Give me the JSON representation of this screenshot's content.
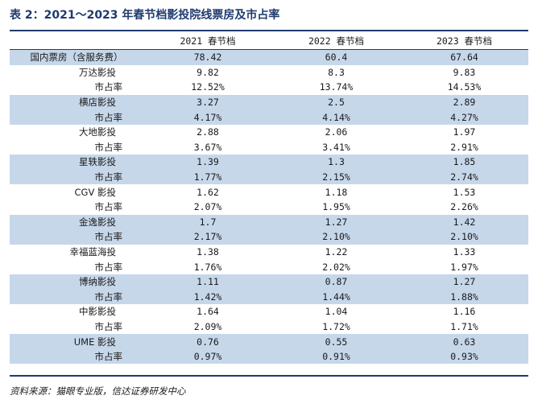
{
  "title": "表 2：2021～2023 年春节档影投院线票房及市占率",
  "columns": [
    "",
    "2021 春节档",
    "2022 春节档",
    "2023 春节档"
  ],
  "rows": [
    {
      "label": "国内票房（含服务费）",
      "values": [
        "78.42",
        "60.4",
        "67.64"
      ],
      "kind": "total",
      "shaded": true
    },
    {
      "label": "万达影投",
      "values": [
        "9.82",
        "8.3",
        "9.83"
      ],
      "kind": "company",
      "shaded": false
    },
    {
      "label": "市占率",
      "values": [
        "12.52%",
        "13.74%",
        "14.53%"
      ],
      "kind": "share",
      "shaded": false
    },
    {
      "label": "横店影投",
      "values": [
        "3.27",
        "2.5",
        "2.89"
      ],
      "kind": "company",
      "shaded": true
    },
    {
      "label": "市占率",
      "values": [
        "4.17%",
        "4.14%",
        "4.27%"
      ],
      "kind": "share",
      "shaded": true
    },
    {
      "label": "大地影投",
      "values": [
        "2.88",
        "2.06",
        "1.97"
      ],
      "kind": "company",
      "shaded": false
    },
    {
      "label": "市占率",
      "values": [
        "3.67%",
        "3.41%",
        "2.91%"
      ],
      "kind": "share",
      "shaded": false
    },
    {
      "label": "星轶影投",
      "values": [
        "1.39",
        "1.3",
        "1.85"
      ],
      "kind": "company",
      "shaded": true
    },
    {
      "label": "市占率",
      "values": [
        "1.77%",
        "2.15%",
        "2.74%"
      ],
      "kind": "share",
      "shaded": true
    },
    {
      "label": "CGV 影投",
      "values": [
        "1.62",
        "1.18",
        "1.53"
      ],
      "kind": "company",
      "shaded": false
    },
    {
      "label": "市占率",
      "values": [
        "2.07%",
        "1.95%",
        "2.26%"
      ],
      "kind": "share",
      "shaded": false
    },
    {
      "label": "金逸影投",
      "values": [
        "1.7",
        "1.27",
        "1.42"
      ],
      "kind": "company",
      "shaded": true
    },
    {
      "label": "市占率",
      "values": [
        "2.17%",
        "2.10%",
        "2.10%"
      ],
      "kind": "share",
      "shaded": true
    },
    {
      "label": "幸福蓝海投",
      "values": [
        "1.38",
        "1.22",
        "1.33"
      ],
      "kind": "company",
      "shaded": false
    },
    {
      "label": "市占率",
      "values": [
        "1.76%",
        "2.02%",
        "1.97%"
      ],
      "kind": "share",
      "shaded": false
    },
    {
      "label": "博纳影投",
      "values": [
        "1.11",
        "0.87",
        "1.27"
      ],
      "kind": "company",
      "shaded": true
    },
    {
      "label": "市占率",
      "values": [
        "1.42%",
        "1.44%",
        "1.88%"
      ],
      "kind": "share",
      "shaded": true
    },
    {
      "label": "中影影投",
      "values": [
        "1.64",
        "1.04",
        "1.16"
      ],
      "kind": "company",
      "shaded": false
    },
    {
      "label": "市占率",
      "values": [
        "2.09%",
        "1.72%",
        "1.71%"
      ],
      "kind": "share",
      "shaded": false
    },
    {
      "label": "UME 影投",
      "values": [
        "0.76",
        "0.55",
        "0.63"
      ],
      "kind": "company",
      "shaded": true
    },
    {
      "label": "市占率",
      "values": [
        "0.97%",
        "0.91%",
        "0.93%"
      ],
      "kind": "share",
      "shaded": true
    }
  ],
  "source": "资料来源：猫眼专业版，信达证券研发中心",
  "colors": {
    "accent": "#1f3a6e",
    "shade": "#c6d7ea"
  }
}
